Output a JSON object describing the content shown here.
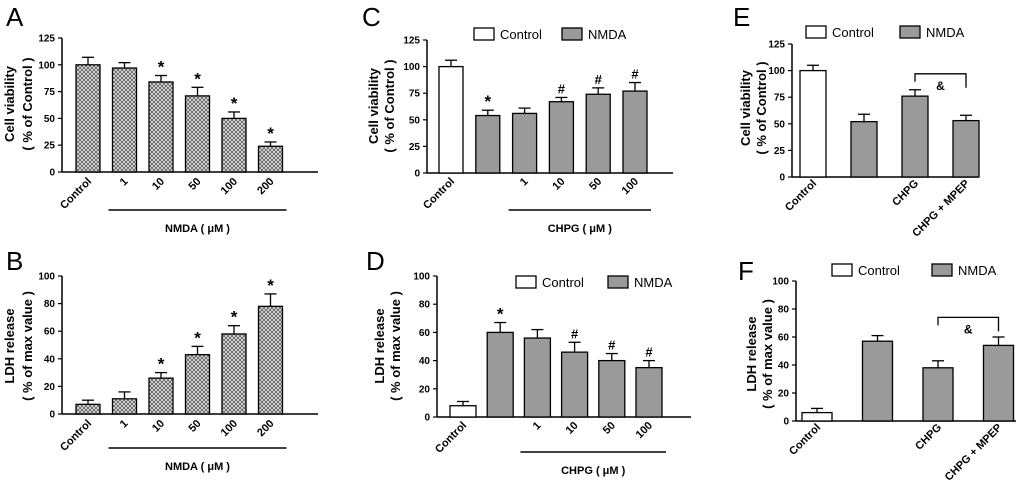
{
  "chart_data": [
    {
      "panel": "A",
      "type": "bar",
      "ylabel": [
        "Cell viability",
        "( % of Control )"
      ],
      "ylim": [
        0,
        125
      ],
      "yticks": [
        0,
        25,
        50,
        75,
        100,
        125
      ],
      "categories": [
        "Control",
        "1",
        "10",
        "50",
        "100",
        "200"
      ],
      "values": [
        100,
        97,
        84,
        71,
        50,
        24
      ],
      "errors": [
        7,
        5,
        6,
        8,
        6,
        4
      ],
      "markers": [
        "",
        "",
        "*",
        "*",
        "*",
        "*"
      ],
      "fills": [
        "hatch",
        "hatch",
        "hatch",
        "hatch",
        "hatch",
        "hatch"
      ],
      "group_label": "NMDA ( μM )",
      "group_range": [
        1,
        5
      ],
      "legend": null
    },
    {
      "panel": "B",
      "type": "bar",
      "ylabel": [
        "LDH release",
        "( % of max value )"
      ],
      "ylim": [
        0,
        100
      ],
      "yticks": [
        0,
        20,
        40,
        60,
        80,
        100
      ],
      "categories": [
        "Control",
        "1",
        "10",
        "50",
        "100",
        "200"
      ],
      "values": [
        7,
        11,
        26,
        43,
        58,
        78
      ],
      "errors": [
        3,
        5,
        4,
        6,
        6,
        9
      ],
      "markers": [
        "",
        "",
        "*",
        "*",
        "*",
        "*"
      ],
      "fills": [
        "hatch",
        "hatch",
        "hatch",
        "hatch",
        "hatch",
        "hatch"
      ],
      "group_label": "NMDA ( μM )",
      "group_range": [
        1,
        5
      ],
      "legend": null
    },
    {
      "panel": "C",
      "type": "bar",
      "ylabel": [
        "Cell viability",
        "( % of Control )"
      ],
      "ylim": [
        0,
        125
      ],
      "yticks": [
        0,
        25,
        50,
        75,
        100,
        125
      ],
      "categories": [
        "Control",
        "",
        "1",
        "10",
        "50",
        "100"
      ],
      "values": [
        100,
        54,
        56,
        67,
        74,
        77
      ],
      "errors": [
        6,
        5,
        5,
        4,
        6,
        8
      ],
      "markers": [
        "",
        "*",
        "",
        "#",
        "#",
        "#"
      ],
      "fills": [
        "white",
        "gray",
        "gray",
        "gray",
        "gray",
        "gray"
      ],
      "group_label": "CHPG ( μM )",
      "group_range": [
        2,
        5
      ],
      "legend": [
        "Control",
        "NMDA"
      ]
    },
    {
      "panel": "D",
      "type": "bar",
      "ylabel": [
        "LDH release",
        "( % of max value )"
      ],
      "ylim": [
        0,
        100
      ],
      "yticks": [
        0,
        20,
        40,
        60,
        80,
        100
      ],
      "categories": [
        "Control",
        "",
        "1",
        "10",
        "50",
        "100"
      ],
      "values": [
        8,
        60,
        56,
        46,
        40,
        35
      ],
      "errors": [
        3,
        7,
        6,
        7,
        5,
        5
      ],
      "markers": [
        "",
        "*",
        "",
        "#",
        "#",
        "#"
      ],
      "fills": [
        "white",
        "gray",
        "gray",
        "gray",
        "gray",
        "gray"
      ],
      "group_label": "CHPG ( μM )",
      "group_range": [
        2,
        5
      ],
      "legend": [
        "Control",
        "NMDA"
      ]
    },
    {
      "panel": "E",
      "type": "bar",
      "ylabel": [
        "Cell viability",
        "( % of Control )"
      ],
      "ylim": [
        0,
        125
      ],
      "yticks": [
        0,
        25,
        50,
        75,
        100,
        125
      ],
      "categories": [
        "Control",
        "",
        "CHPG",
        "CHPG + MPEP"
      ],
      "values": [
        100,
        52,
        76,
        53
      ],
      "errors": [
        5,
        7,
        6,
        5
      ],
      "markers": [
        "",
        "",
        "",
        ""
      ],
      "fills": [
        "white",
        "gray",
        "gray",
        "gray"
      ],
      "bracket": {
        "from": 2,
        "to": 3,
        "label": "&",
        "level": 97
      },
      "legend": [
        "Control",
        "NMDA"
      ]
    },
    {
      "panel": "F",
      "type": "bar",
      "ylabel": [
        "LDH release",
        "( % of max value )"
      ],
      "ylim": [
        0,
        100
      ],
      "yticks": [
        0,
        20,
        40,
        60,
        80,
        100
      ],
      "categories": [
        "Control",
        "",
        "CHPG",
        "CHPG + MPEP"
      ],
      "values": [
        6,
        57,
        38,
        54
      ],
      "errors": [
        3,
        4,
        5,
        6
      ],
      "markers": [
        "",
        "",
        "",
        ""
      ],
      "fills": [
        "white",
        "gray",
        "gray",
        "gray"
      ],
      "bracket": {
        "from": 2,
        "to": 3,
        "label": "&",
        "level": 74
      },
      "legend": [
        "Control",
        "NMDA"
      ]
    }
  ]
}
